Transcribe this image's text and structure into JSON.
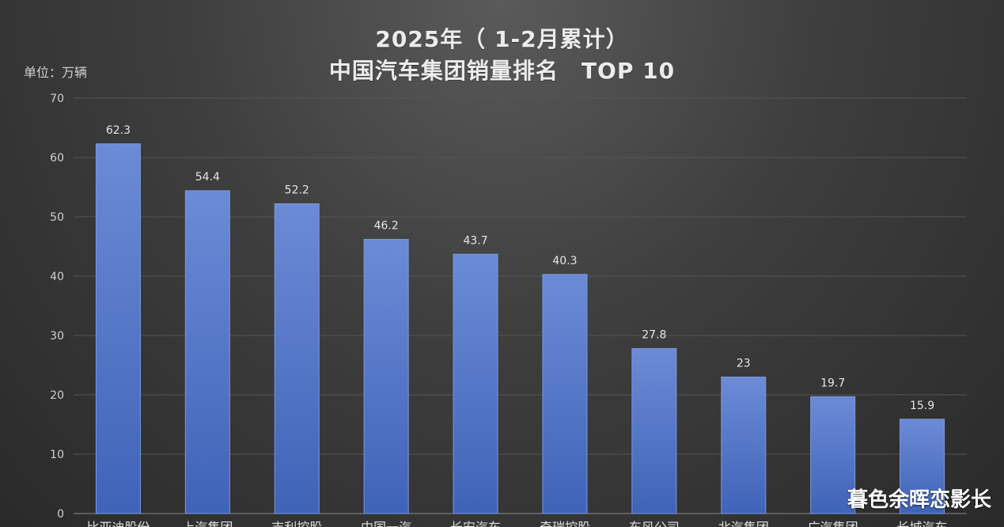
{
  "chart_data": {
    "type": "bar",
    "title": "2025年（ 1-2月累计）",
    "subtitle": "中国汽车集团销量排名　TOP 10",
    "ylabel": "单位：万辆",
    "ylim": [
      0,
      70
    ],
    "yticks": [
      0,
      10,
      20,
      30,
      40,
      50,
      60,
      70
    ],
    "grid": true,
    "categories": [
      "比亚迪股份",
      "上汽集团",
      "吉利控股",
      "中国一汽",
      "长安汽车",
      "奇瑞控股",
      "东风公司",
      "北汽集团",
      "广汽集团",
      "长城汽车"
    ],
    "values": [
      62.3,
      54.4,
      52.2,
      46.2,
      43.7,
      40.3,
      27.8,
      23,
      19.7,
      15.9
    ],
    "data_labels": [
      "62.3",
      "54.4",
      "52.2",
      "46.2",
      "43.7",
      "40.3",
      "27.8",
      "23",
      "19.7",
      "15.9"
    ],
    "colors": {
      "bar_top": "#6b8bd6",
      "bar_bottom": "#3f63b8",
      "grid": "#555555"
    }
  },
  "watermark": "暮色余晖恋影长"
}
